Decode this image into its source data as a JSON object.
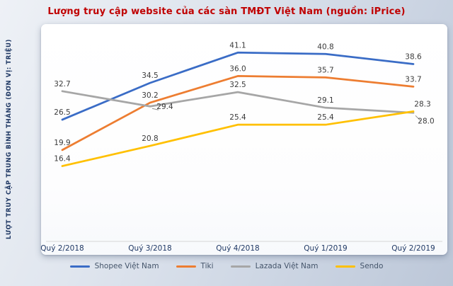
{
  "chart_data": {
    "type": "line",
    "title": "Lượng truy cập website của các sàn TMĐT Việt Nam (nguồn: iPrice)",
    "ylabel": "LƯỢT TRUY CẬP TRUNG BÌNH THÁNG (ĐƠN VỊ: TRIỆU)",
    "xlabel": "",
    "categories": [
      "Quý 2/2018",
      "Quý 3/2018",
      "Quý 4/2018",
      "Quý 1/2019",
      "Quý 2/2019"
    ],
    "series": [
      {
        "name": "Shopee Việt Nam",
        "color": "#3A6CC6",
        "values": [
          26.5,
          34.5,
          41.1,
          40.8,
          38.6
        ]
      },
      {
        "name": "Tiki",
        "color": "#ED7D31",
        "values": [
          19.9,
          30.2,
          36.0,
          35.7,
          33.7
        ]
      },
      {
        "name": "Lazada Việt Nam",
        "color": "#A6A6A6",
        "values": [
          32.7,
          29.4,
          32.5,
          29.1,
          28.0
        ]
      },
      {
        "name": "Sendo",
        "color": "#FFC000",
        "values": [
          16.4,
          20.8,
          25.4,
          25.4,
          28.3
        ]
      }
    ],
    "ylim": [
      0,
      45
    ],
    "grid": false,
    "legend_position": "bottom",
    "data_labels": true
  },
  "colors": {
    "title": "#C00000",
    "axis_text": "#1F3864",
    "legend_text": "#44546A",
    "data_label": "#3B3B3B",
    "axis_line": "#D6D6D6",
    "leader_line": "#8C8C8C"
  }
}
